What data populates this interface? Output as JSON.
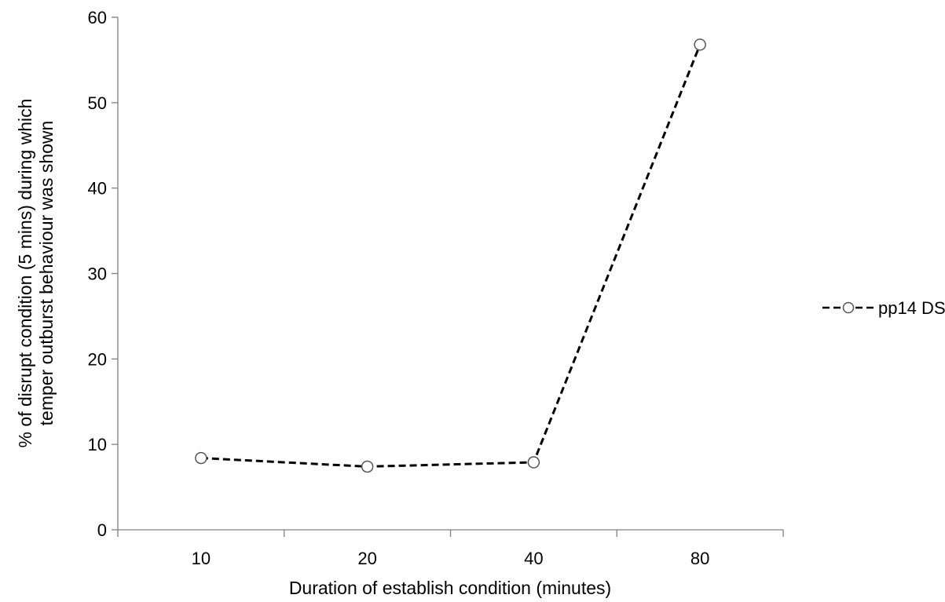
{
  "chart_data": {
    "type": "line",
    "categories": [
      "10",
      "20",
      "40",
      "80"
    ],
    "series": [
      {
        "name": "pp14 DS",
        "values": [
          8.4,
          7.4,
          7.9,
          56.8
        ]
      }
    ],
    "xlabel": "Duration of establish condition (minutes)",
    "ylabel_lines": [
      "% of disrupt condition (5 mins) during which",
      "temper outburst behaviour was shown"
    ],
    "ylim": [
      0,
      60
    ],
    "yticks": [
      0,
      10,
      20,
      30,
      40,
      50,
      60
    ],
    "grid": false,
    "legend_position": "right",
    "line_style": "dashed",
    "marker": "open-circle",
    "colors": {
      "line": "#000000",
      "marker_fill": "#ffffff",
      "axis": "#808080"
    }
  }
}
